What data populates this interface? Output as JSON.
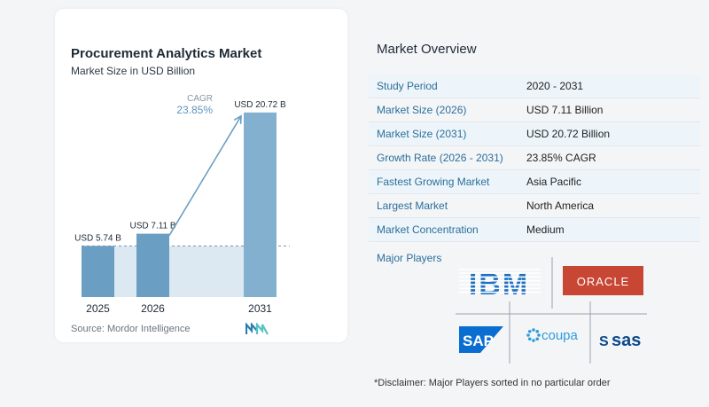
{
  "chart_data": {
    "type": "bar",
    "title": "Procurement Analytics Market",
    "subtitle": "Market Size in USD Billion",
    "categories": [
      "2025",
      "2026",
      "2031"
    ],
    "values": [
      5.74,
      7.11,
      20.72
    ],
    "data_labels": [
      "USD 5.74 B",
      "USD 7.11 B",
      "USD 20.72 B"
    ],
    "ylim": [
      0,
      22
    ],
    "annotation": {
      "label": "CAGR",
      "value": "23.85%"
    },
    "reference_line": 5.74,
    "grid": false,
    "colors": {
      "bar": "#6a9ec2",
      "bar_light": "#84b0cf",
      "shade": "#dde9f2",
      "arrow": "#6a9ec2",
      "text": "#1f2a36"
    }
  },
  "source": "Source:  Mordor Intelligence",
  "overview": {
    "title": "Market Overview",
    "rows": [
      {
        "label": "Study Period",
        "value": "2020 - 2031"
      },
      {
        "label": "Market Size (2026)",
        "value": "USD 7.11 Billion"
      },
      {
        "label": "Market Size (2031)",
        "value": "USD 20.72 Billion"
      },
      {
        "label": "Growth Rate (2026 - 2031)",
        "value": "23.85% CAGR"
      },
      {
        "label": "Fastest Growing Market",
        "value": "Asia Pacific"
      },
      {
        "label": "Largest Market",
        "value": "North America"
      },
      {
        "label": "Market Concentration",
        "value": "Medium"
      }
    ]
  },
  "players": {
    "title": "Major Players",
    "logos": [
      {
        "name": "IBM",
        "text": "IBM",
        "color": "#1f70c1"
      },
      {
        "name": "Oracle",
        "text": "ORACLE",
        "color": "#c74634"
      },
      {
        "name": "SAP",
        "text": "SAP",
        "color": "#0a6ed1"
      },
      {
        "name": "Coupa",
        "text": "coupa",
        "color": "#2d9cdb"
      },
      {
        "name": "SAS",
        "text": "sas",
        "color": "#0c4a8b"
      }
    ]
  },
  "disclaimer": "*Disclaimer: Major Players sorted in no particular order"
}
